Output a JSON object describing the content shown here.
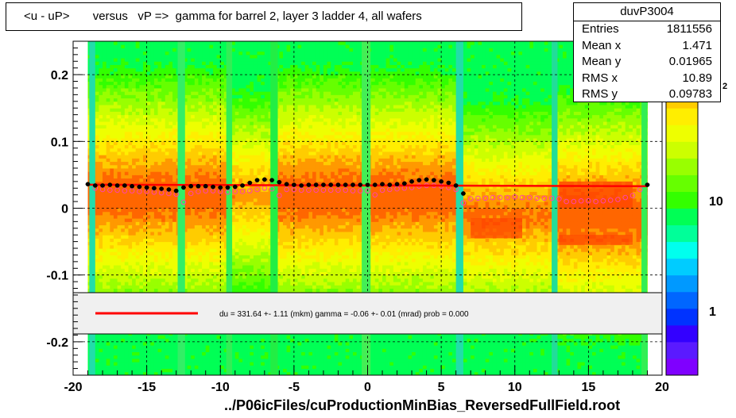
{
  "title": "<u - uP>       versus   vP =>  gamma for barrel 2, layer 3 ladder 4, all wafers",
  "stats": {
    "name": "duvP3004",
    "rows": [
      {
        "label": "Entries",
        "value": "1811556"
      },
      {
        "label": "Mean x",
        "value": "1.471"
      },
      {
        "label": "Mean y",
        "value": "0.01965"
      },
      {
        "label": "RMS x",
        "value": "10.89"
      },
      {
        "label": "RMS y",
        "value": "0.09783"
      }
    ]
  },
  "fit_text": "du =  331.64 +-  1.11 (mkm) gamma =   -0.06 +-  0.01 (mrad) prob = 0.000",
  "footer": "../P06icFiles/cuProductionMinBias_ReversedFullField.root",
  "colors": {
    "fit_line": "#ff0000",
    "profile_black": "#000000",
    "profile_open": "#ff44aa",
    "palette": [
      "#7f00ff",
      "#5a1aff",
      "#3300ff",
      "#0033ff",
      "#0066ff",
      "#0099ff",
      "#00ccff",
      "#00ffee",
      "#00ff99",
      "#00ff55",
      "#33ff00",
      "#66ff00",
      "#99ff00",
      "#ccff00",
      "#eeff00",
      "#ffee00",
      "#ffcc00",
      "#ff9900",
      "#ff6600",
      "#ff3300"
    ]
  },
  "chart_data": {
    "type": "heatmap",
    "xlim": [
      -20,
      20
    ],
    "ylim": [
      -0.25,
      0.25
    ],
    "x_ticks": [
      -20,
      -15,
      -10,
      -5,
      0,
      5,
      10,
      15,
      20
    ],
    "x_tick_labels": [
      "-20",
      "-15",
      "-10",
      "-5",
      "0",
      "5",
      "10",
      "15",
      "20"
    ],
    "y_ticks": [
      -0.2,
      -0.1,
      0,
      0.1,
      0.2
    ],
    "y_tick_labels": [
      "-0.2",
      "-0.1",
      "0",
      "0.1",
      "0.2"
    ],
    "z_scale": "log",
    "z_tick_labels": [
      "1",
      "10"
    ],
    "z_partial_label": "2",
    "grid": true,
    "fit_line": {
      "x": [
        -19,
        19
      ],
      "y": [
        0.0352,
        0.033
      ]
    },
    "profile_filled": {
      "x": [
        -19,
        -18.5,
        -18,
        -17.5,
        -17,
        -16.5,
        -16,
        -15.5,
        -15,
        -14.5,
        -14,
        -13.5,
        -13,
        -12.5,
        -12,
        -11.5,
        -11,
        -10.5,
        -10,
        -9.5,
        -9,
        -8.5,
        -8,
        -7.5,
        -7,
        -6.5,
        -6,
        -5.5,
        -5,
        -4.5,
        -4,
        -3.5,
        -3,
        -2.5,
        -2,
        -1.5,
        -1,
        -0.5,
        0,
        0.5,
        1,
        1.5,
        2,
        2.5,
        3,
        3.5,
        4,
        4.5,
        5,
        5.5,
        6,
        6.5,
        19
      ],
      "y": [
        0.036,
        0.034,
        0.034,
        0.035,
        0.034,
        0.034,
        0.033,
        0.032,
        0.031,
        0.03,
        0.029,
        0.028,
        0.026,
        0.031,
        0.033,
        0.033,
        0.033,
        0.032,
        0.031,
        0.031,
        0.032,
        0.034,
        0.038,
        0.042,
        0.043,
        0.042,
        0.039,
        0.036,
        0.035,
        0.034,
        0.035,
        0.035,
        0.035,
        0.035,
        0.035,
        0.035,
        0.035,
        0.035,
        0.035,
        0.035,
        0.036,
        0.035,
        0.036,
        0.037,
        0.04,
        0.042,
        0.043,
        0.042,
        0.04,
        0.038,
        0.034,
        0.022,
        0.035
      ]
    },
    "profile_open": {
      "x": [
        -18.5,
        -18,
        -17.5,
        -17,
        -16.5,
        -16,
        -15.5,
        -15,
        -14.5,
        -14,
        -13.5,
        -13,
        -12.5,
        -12,
        -11.5,
        -11,
        -10.5,
        -10,
        -9.5,
        -9,
        -8.5,
        -8,
        -7.5,
        -7,
        -6.5,
        -6,
        -5.5,
        -5,
        -4.5,
        -4,
        -3.5,
        -3,
        -2.5,
        -2,
        -1.5,
        -1,
        -0.5,
        0,
        0.5,
        1,
        1.5,
        2,
        2.5,
        3,
        3.5,
        4,
        4.5,
        5,
        5.5,
        6,
        6.5,
        7,
        7.5,
        8,
        8.5,
        9,
        9.5,
        10,
        10.5,
        11,
        11.5,
        12,
        12.5,
        13,
        13.5,
        14,
        14.5,
        15,
        15.5,
        16,
        16.5,
        17,
        17.5,
        18,
        18.5
      ],
      "y": [
        0.03,
        0.028,
        0.027,
        0.027,
        0.026,
        0.026,
        0.025,
        0.025,
        0.024,
        0.023,
        0.022,
        0.021,
        0.009,
        0.022,
        0.025,
        0.026,
        0.026,
        0.025,
        0.024,
        0.025,
        0.025,
        0.026,
        0.028,
        0.03,
        0.029,
        0.019,
        0.028,
        0.028,
        0.027,
        0.027,
        0.027,
        0.027,
        0.027,
        0.027,
        0.027,
        0.026,
        0.026,
        0.026,
        0.02,
        0.027,
        0.028,
        0.029,
        0.03,
        0.031,
        0.033,
        0.034,
        0.034,
        0.033,
        0.031,
        0.028,
        0.008,
        0.014,
        0.015,
        0.015,
        0.016,
        0.016,
        0.016,
        0.017,
        0.016,
        0.016,
        0.015,
        0.015,
        0.015,
        0.014,
        0.01,
        0.01,
        0.011,
        0.011,
        0.01,
        0.011,
        0.012,
        0.013,
        0.016,
        0.019,
        0.028
      ]
    }
  }
}
